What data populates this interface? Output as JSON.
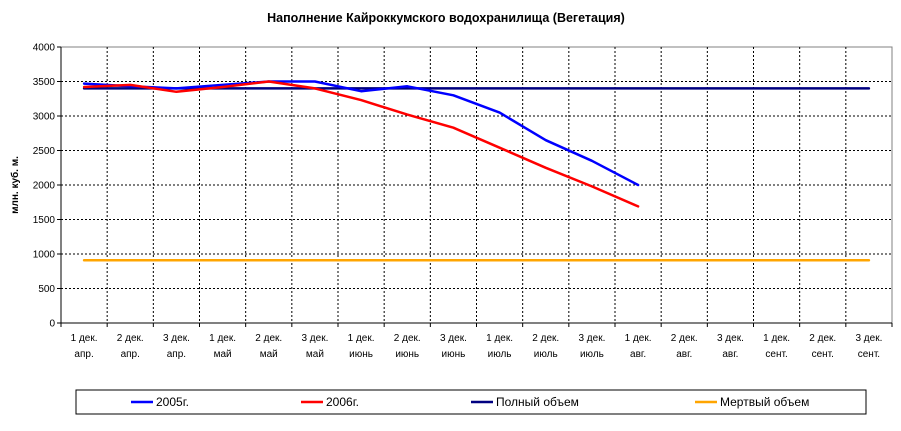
{
  "chart_data": {
    "type": "line",
    "title": "Наполнение Кайроккумского водохранилища (Вегетация)",
    "ylabel": "млн. куб. м.",
    "xlabel": "",
    "ylim": [
      0,
      4000
    ],
    "yticks": [
      0,
      500,
      1000,
      1500,
      2000,
      2500,
      3000,
      3500,
      4000
    ],
    "grid": true,
    "legend_position": "bottom",
    "categories": [
      [
        "1 дек.",
        "апр."
      ],
      [
        "2 дек.",
        "апр."
      ],
      [
        "3 дек.",
        "апр."
      ],
      [
        "1 дек.",
        "май"
      ],
      [
        "2 дек.",
        "май"
      ],
      [
        "3 дек.",
        "май"
      ],
      [
        "1 дек.",
        "июнь"
      ],
      [
        "2 дек.",
        "июнь"
      ],
      [
        "3 дек.",
        "июнь"
      ],
      [
        "1 дек.",
        "июль"
      ],
      [
        "2 дек.",
        "июль"
      ],
      [
        "3 дек.",
        "июль"
      ],
      [
        "1 дек.",
        "авг."
      ],
      [
        "2 дек.",
        "авг."
      ],
      [
        "3 дек.",
        "авг."
      ],
      [
        "1 дек.",
        "сент."
      ],
      [
        "2 дек.",
        "сент."
      ],
      [
        "3 дек.",
        "сент."
      ]
    ],
    "series": [
      {
        "name": "2005г.",
        "color": "#0000ff",
        "values": [
          3470,
          3430,
          3400,
          3450,
          3500,
          3500,
          3360,
          3430,
          3300,
          3050,
          2650,
          2350,
          2000,
          null,
          null,
          null,
          null,
          null
        ]
      },
      {
        "name": "2006г.",
        "color": "#ff0000",
        "values": [
          3420,
          3450,
          3350,
          3420,
          3500,
          3400,
          3230,
          3020,
          2830,
          2540,
          2250,
          1980,
          1690,
          null,
          null,
          null,
          null,
          null
        ]
      },
      {
        "name": "Полный объем",
        "color": "#000080",
        "values": [
          3400,
          3400,
          3400,
          3400,
          3400,
          3400,
          3400,
          3400,
          3400,
          3400,
          3400,
          3400,
          3400,
          3400,
          3400,
          3400,
          3400,
          3400
        ]
      },
      {
        "name": "Мертвый объем",
        "color": "#ffa500",
        "values": [
          910,
          910,
          910,
          910,
          910,
          910,
          910,
          910,
          910,
          910,
          910,
          910,
          910,
          910,
          910,
          910,
          910,
          910
        ]
      }
    ]
  }
}
